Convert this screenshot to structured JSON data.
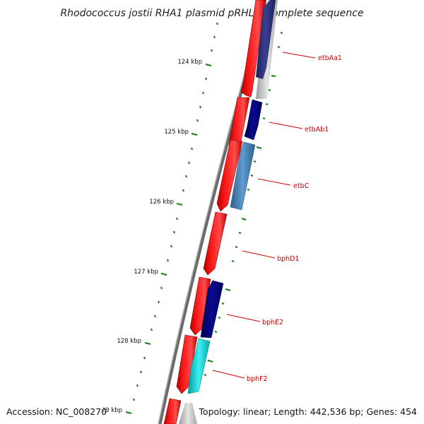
{
  "title": "Rhodococcus jostii RHA1 plasmid pRHL2, complete sequence",
  "footer": {
    "accession": "Accession: NC_008270",
    "topology": "Topology: linear; Length: 442,536 bp; Genes: 454"
  },
  "scale": {
    "major_labels": [
      "124 kbp",
      "125 kbp",
      "126 kbp",
      "127 kbp",
      "128 kbp",
      "129 kbp"
    ]
  },
  "genes": [
    {
      "name": "etbAa1",
      "color": "#232a7a"
    },
    {
      "name": "etbAb1",
      "color": "#000080"
    },
    {
      "name": "etbC",
      "color": "#4682b4"
    },
    {
      "name": "bphD1",
      "color": "#ff0000"
    },
    {
      "name": "bphE2",
      "color": "#000080"
    },
    {
      "name": "bphF2",
      "color": "#00ced1"
    }
  ],
  "colors": {
    "forward_cds": "#ff0000",
    "backbone": "#707070",
    "ticks": "#1a7a1a",
    "gene_label": "#cc0000"
  }
}
